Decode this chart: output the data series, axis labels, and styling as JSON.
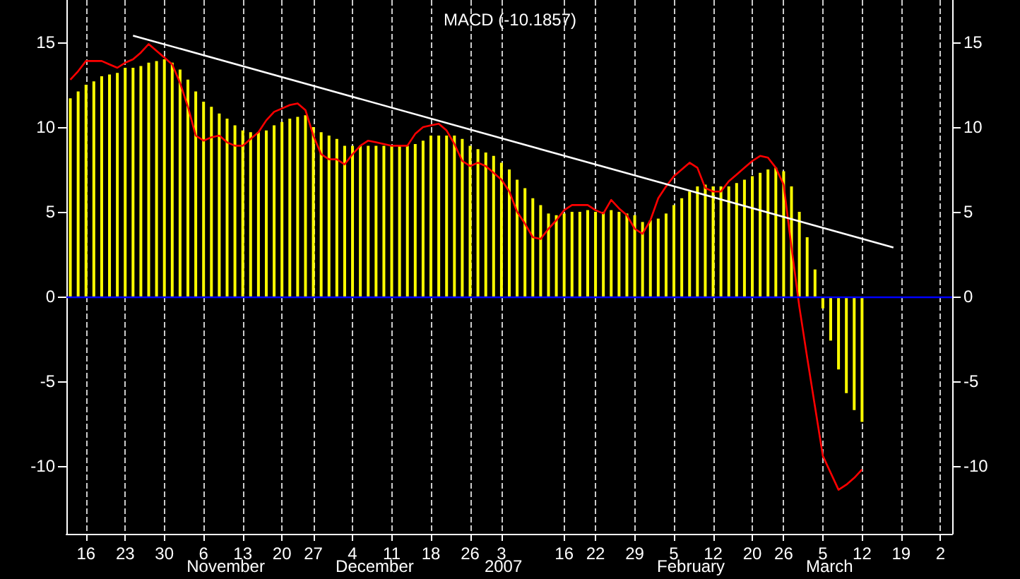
{
  "chart_data": {
    "type": "bar",
    "title": "MACD (-10.1857)",
    "categories": [
      null,
      null,
      "16",
      null,
      null,
      null,
      null,
      "23",
      null,
      null,
      null,
      null,
      "30",
      null,
      null,
      null,
      null,
      "6",
      null,
      null,
      null,
      null,
      "13",
      null,
      null,
      null,
      null,
      "20",
      null,
      null,
      null,
      "27",
      null,
      null,
      null,
      null,
      "4",
      null,
      null,
      null,
      null,
      "11",
      null,
      null,
      null,
      null,
      "18",
      null,
      null,
      null,
      null,
      "26",
      null,
      null,
      null,
      "3",
      null,
      null,
      null,
      null,
      null,
      null,
      null,
      "16",
      null,
      null,
      null,
      "22",
      null,
      null,
      null,
      null,
      "29",
      null,
      null,
      null,
      null,
      "5",
      null,
      null,
      null,
      null,
      "12",
      null,
      null,
      null,
      null,
      "20",
      null,
      null,
      null,
      "26",
      null,
      null,
      null,
      null,
      "5",
      null,
      null,
      null,
      null,
      "12",
      null,
      null,
      null,
      null,
      "19",
      null,
      null,
      null,
      null,
      "2",
      null
    ],
    "series": [
      {
        "color": "#ffff00",
        "values": [
          11.7,
          12.1,
          12.5,
          12.7,
          13.0,
          13.1,
          13.2,
          13.5,
          13.5,
          13.6,
          13.8,
          13.9,
          14.0,
          13.8,
          13.4,
          12.8,
          12.1,
          11.5,
          11.2,
          10.8,
          10.5,
          10.1,
          9.8,
          9.7,
          9.7,
          9.8,
          10.1,
          10.3,
          10.5,
          10.6,
          10.7,
          10.0,
          9.7,
          9.5,
          9.3,
          8.9,
          8.9,
          8.9,
          8.9,
          8.9,
          8.9,
          8.9,
          8.9,
          8.9,
          9.0,
          9.2,
          9.5,
          9.5,
          9.5,
          9.5,
          9.3,
          8.9,
          8.7,
          8.5,
          8.3,
          7.9,
          7.5,
          6.9,
          6.4,
          5.8,
          5.4,
          4.9,
          4.8,
          4.9,
          5.0,
          5.0,
          5.1,
          5.0,
          5.0,
          5.1,
          5.0,
          4.9,
          4.8,
          4.4,
          4.5,
          4.6,
          4.9,
          5.4,
          5.8,
          6.2,
          6.5,
          6.6,
          6.5,
          6.5,
          6.5,
          6.7,
          6.9,
          7.1,
          7.3,
          7.5,
          7.6,
          7.4,
          6.5,
          5.0,
          3.5,
          1.6,
          -0.7,
          -2.6,
          -4.3,
          -5.7,
          -6.7,
          -7.4,
          null,
          null,
          null,
          null,
          null,
          null,
          null,
          null,
          null,
          null,
          null
        ]
      },
      {
        "type": "line",
        "color": "#ff0000",
        "values": [
          12.8,
          13.3,
          13.9,
          13.9,
          13.9,
          13.7,
          13.5,
          13.8,
          14.0,
          14.4,
          14.9,
          14.5,
          14.1,
          13.7,
          12.6,
          11.2,
          9.5,
          9.2,
          9.4,
          9.5,
          9.1,
          8.9,
          8.9,
          9.3,
          9.7,
          10.4,
          10.9,
          11.1,
          11.3,
          11.4,
          11.0,
          9.5,
          8.4,
          8.1,
          8.1,
          7.8,
          8.4,
          8.9,
          9.2,
          9.1,
          9.0,
          8.9,
          8.9,
          8.9,
          9.6,
          10.0,
          10.1,
          10.2,
          9.8,
          9.0,
          8.0,
          7.7,
          7.9,
          7.7,
          7.3,
          6.9,
          6.2,
          5.0,
          4.3,
          3.5,
          3.4,
          4.0,
          4.5,
          5.1,
          5.4,
          5.4,
          5.4,
          5.1,
          4.9,
          5.7,
          5.2,
          4.8,
          4.0,
          3.7,
          4.5,
          5.8,
          6.5,
          7.1,
          7.5,
          7.9,
          7.6,
          6.4,
          6.2,
          6.2,
          6.8,
          7.2,
          7.6,
          8.0,
          8.3,
          8.2,
          7.6,
          6.6,
          2.9,
          -0.6,
          -3.6,
          -6.5,
          -9.4,
          -10.4,
          -11.4,
          -11.1,
          -10.7,
          -10.2,
          null,
          null,
          null,
          null,
          null,
          null,
          null,
          null,
          null,
          null,
          null
        ]
      },
      {
        "type": "line",
        "color": "#ffffff",
        "values": [
          null,
          null,
          null,
          null,
          null,
          null,
          null,
          null,
          15.4,
          null,
          null,
          null,
          null,
          null,
          null,
          null,
          null,
          null,
          null,
          null,
          null,
          null,
          null,
          null,
          null,
          null,
          null,
          null,
          null,
          null,
          null,
          null,
          null,
          null,
          null,
          null,
          null,
          null,
          null,
          null,
          null,
          null,
          null,
          null,
          null,
          null,
          null,
          null,
          null,
          null,
          null,
          null,
          null,
          null,
          null,
          null,
          null,
          null,
          null,
          null,
          null,
          null,
          null,
          null,
          null,
          null,
          null,
          null,
          null,
          null,
          null,
          null,
          null,
          null,
          null,
          null,
          null,
          null,
          null,
          null,
          null,
          null,
          null,
          null,
          null,
          null,
          null,
          null,
          null,
          null,
          null,
          null,
          null,
          null,
          null,
          null,
          null,
          null,
          null,
          null,
          null,
          null,
          null,
          null,
          null,
          2.9,
          null,
          null,
          null,
          null,
          null,
          null,
          null
        ]
      }
    ],
    "ylim": [
      -14,
      17.5
    ],
    "yticks": [
      -10,
      -5,
      0,
      5,
      10,
      15
    ],
    "y2lim": [
      -14,
      17.5
    ],
    "y2ticks": [
      -10,
      -5,
      0,
      5,
      10,
      15
    ],
    "grid": "x",
    "marker": "none",
    "ref_lines": [
      {
        "axis": "y",
        "value": 0,
        "color": "#0000ff"
      }
    ],
    "annotations": [
      "November",
      "December",
      "2007",
      "February",
      "March"
    ]
  }
}
